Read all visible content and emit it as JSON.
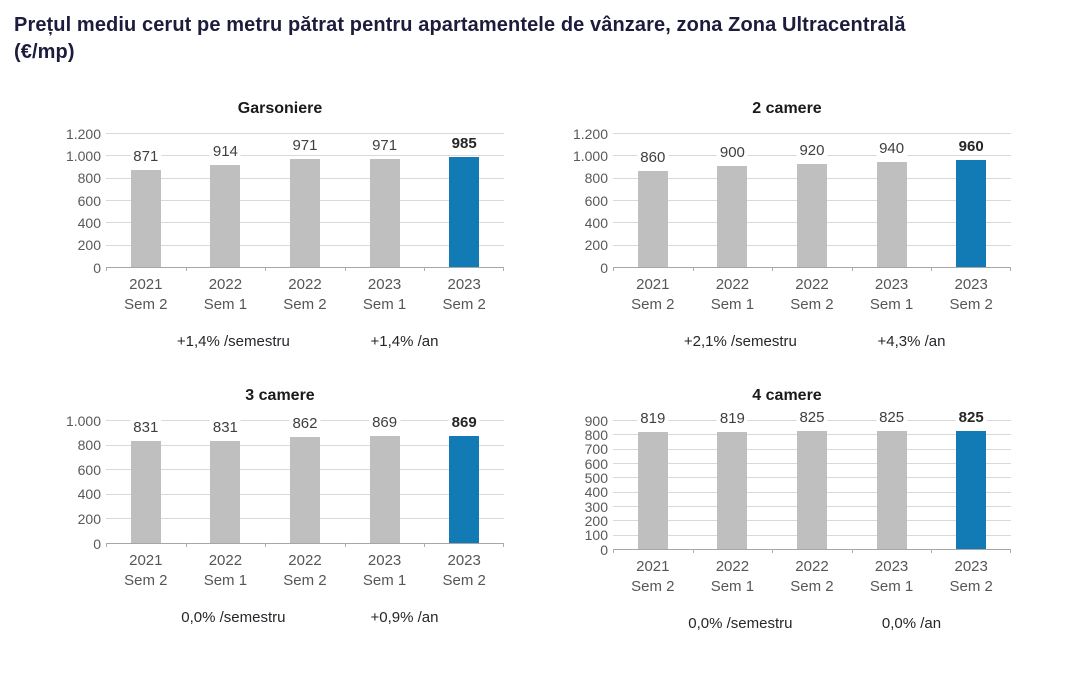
{
  "title": "Prețul mediu cerut pe metru pătrat pentru apartamentele de vânzare, zona Zona Ultracentrală (€/mp)",
  "colors": {
    "title_text": "#1c1c3c",
    "bar_default": "#bfbfbf",
    "bar_highlight": "#127ab5",
    "gridline": "#d9d9d9",
    "axis_line": "#a6a6a6"
  },
  "chart_data": [
    {
      "type": "bar",
      "title": "Garsoniere",
      "categories": [
        {
          "year": "2021",
          "sem": "Sem 2"
        },
        {
          "year": "2022",
          "sem": "Sem 1"
        },
        {
          "year": "2022",
          "sem": "Sem 2"
        },
        {
          "year": "2023",
          "sem": "Sem 1"
        },
        {
          "year": "2023",
          "sem": "Sem 2"
        }
      ],
      "values": [
        871,
        914,
        971,
        971,
        985
      ],
      "ymax": 1200,
      "ytick_labels": [
        "1.200",
        "1.000",
        "800",
        "600",
        "400",
        "200",
        "0"
      ],
      "highlight_index": 4,
      "grid": true,
      "legend_position": "none",
      "stats": {
        "semester": "+1,4% /semestru",
        "year": "+1,4% /an"
      }
    },
    {
      "type": "bar",
      "title": "2 camere",
      "categories": [
        {
          "year": "2021",
          "sem": "Sem 2"
        },
        {
          "year": "2022",
          "sem": "Sem 1"
        },
        {
          "year": "2022",
          "sem": "Sem 2"
        },
        {
          "year": "2023",
          "sem": "Sem 1"
        },
        {
          "year": "2023",
          "sem": "Sem 2"
        }
      ],
      "values": [
        860,
        900,
        920,
        940,
        960
      ],
      "ymax": 1200,
      "ytick_labels": [
        "1.200",
        "1.000",
        "800",
        "600",
        "400",
        "200",
        "0"
      ],
      "highlight_index": 4,
      "grid": true,
      "legend_position": "none",
      "stats": {
        "semester": "+2,1% /semestru",
        "year": "+4,3% /an"
      }
    },
    {
      "type": "bar",
      "title": "3 camere",
      "categories": [
        {
          "year": "2021",
          "sem": "Sem 2"
        },
        {
          "year": "2022",
          "sem": "Sem 1"
        },
        {
          "year": "2022",
          "sem": "Sem 2"
        },
        {
          "year": "2023",
          "sem": "Sem 1"
        },
        {
          "year": "2023",
          "sem": "Sem 2"
        }
      ],
      "values": [
        831,
        831,
        862,
        869,
        869
      ],
      "ymax": 1000,
      "ytick_labels": [
        "1.000",
        "800",
        "600",
        "400",
        "200",
        "0"
      ],
      "highlight_index": 4,
      "grid": true,
      "legend_position": "none",
      "stats": {
        "semester": "0,0% /semestru",
        "year": "+0,9% /an"
      }
    },
    {
      "type": "bar",
      "title": "4 camere",
      "categories": [
        {
          "year": "2021",
          "sem": "Sem 2"
        },
        {
          "year": "2022",
          "sem": "Sem 1"
        },
        {
          "year": "2022",
          "sem": "Sem 2"
        },
        {
          "year": "2023",
          "sem": "Sem 1"
        },
        {
          "year": "2023",
          "sem": "Sem 2"
        }
      ],
      "values": [
        819,
        819,
        825,
        825,
        825
      ],
      "ymax": 900,
      "ytick_labels": [
        "900",
        "800",
        "700",
        "600",
        "500",
        "400",
        "300",
        "200",
        "100",
        "0"
      ],
      "highlight_index": 4,
      "grid": true,
      "legend_position": "none",
      "stats": {
        "semester": "0,0% /semestru",
        "year": "0,0% /an"
      }
    }
  ]
}
